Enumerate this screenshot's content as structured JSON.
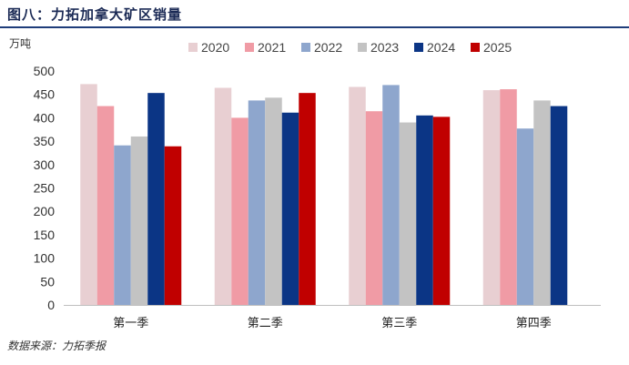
{
  "title": "图八：力拓加拿大矿区销量",
  "source": "数据来源：力拓季报",
  "chart_data": {
    "type": "bar",
    "title": "",
    "ylabel": "万吨",
    "xlabel": "",
    "ylim": [
      0,
      500
    ],
    "ytick_step": 50,
    "grid": false,
    "legend": "top",
    "categories": [
      "第一季",
      "第二季",
      "第三季",
      "第四季"
    ],
    "series": [
      {
        "name": "2020",
        "color": "#e8cfd2",
        "values": [
          472,
          464,
          466,
          459
        ]
      },
      {
        "name": "2021",
        "color": "#f09ba5",
        "values": [
          425,
          400,
          414,
          461
        ]
      },
      {
        "name": "2022",
        "color": "#8ea6cd",
        "values": [
          341,
          437,
          470,
          377
        ]
      },
      {
        "name": "2023",
        "color": "#c3c3c3",
        "values": [
          360,
          443,
          390,
          437
        ]
      },
      {
        "name": "2024",
        "color": "#0b3585",
        "values": [
          453,
          411,
          405,
          425
        ]
      },
      {
        "name": "2025",
        "color": "#c00000",
        "values": [
          339,
          453,
          402,
          null
        ]
      }
    ]
  }
}
